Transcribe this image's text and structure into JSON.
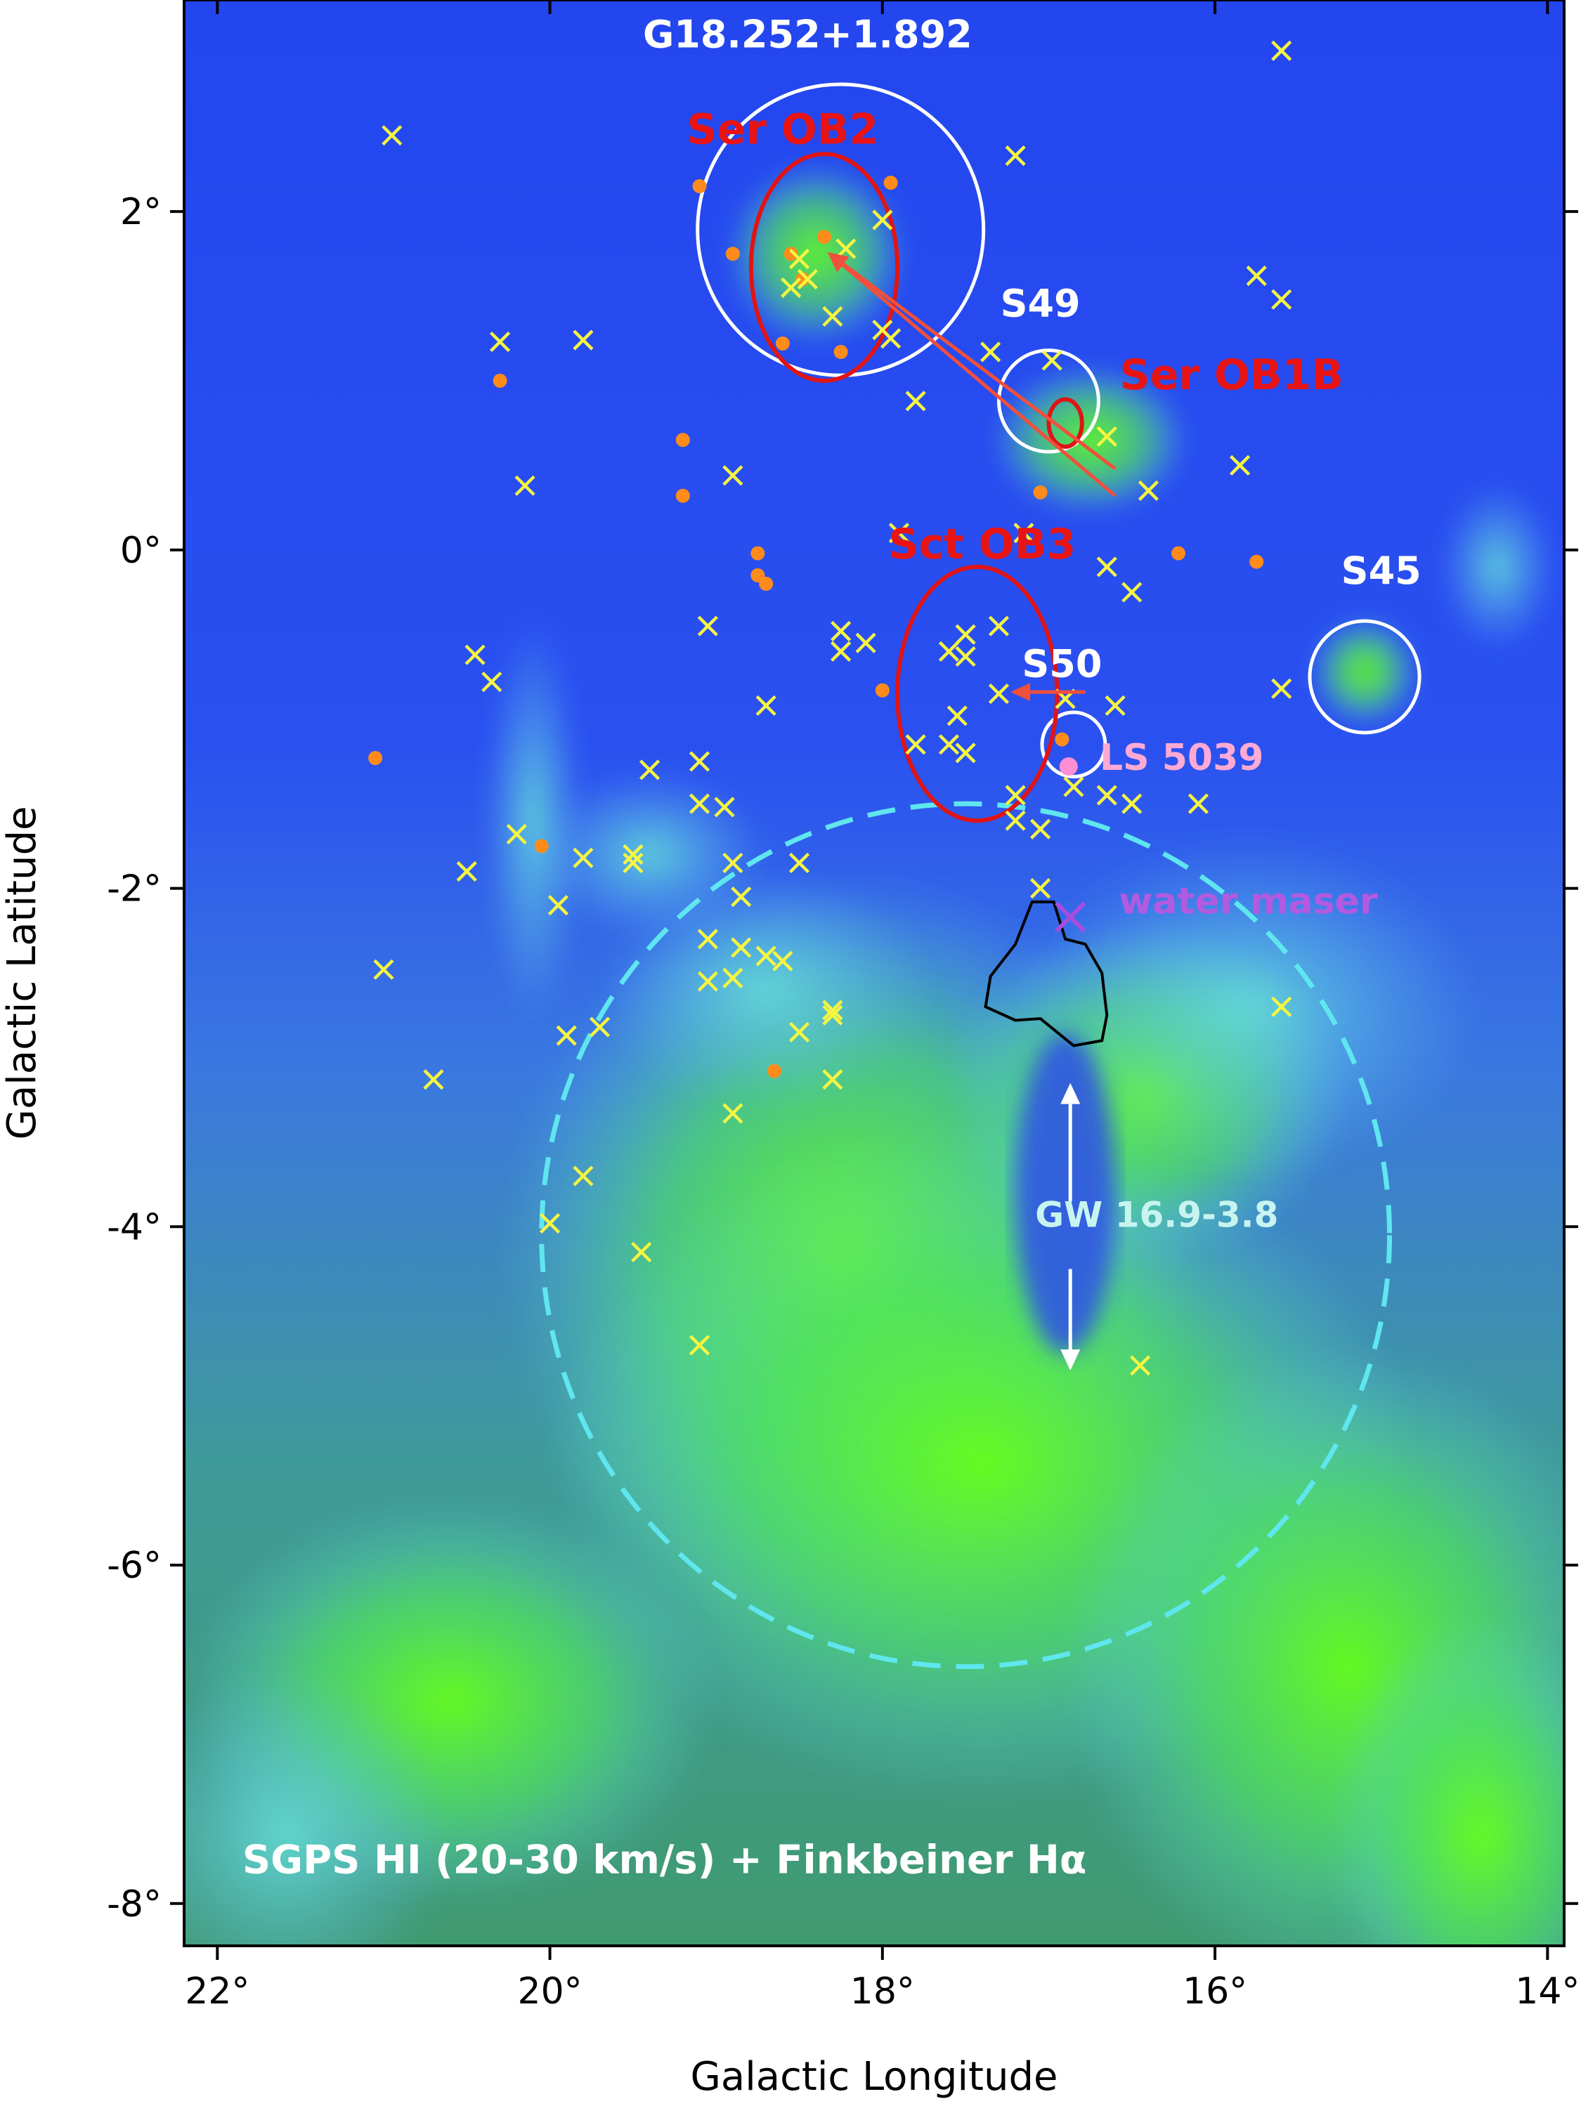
{
  "chart_data": {
    "type": "scatter",
    "xlabel": "Galactic Longitude",
    "ylabel": "Galactic Latitude",
    "xlim": [
      22.2,
      13.9
    ],
    "ylim": [
      -8.25,
      3.25
    ],
    "x_ticks": [
      22,
      20,
      18,
      16,
      14
    ],
    "y_ticks": [
      2,
      0,
      -2,
      -4,
      -6,
      -8
    ],
    "x_tick_labels": [
      "22°",
      "20°",
      "18°",
      "16°",
      "14°"
    ],
    "y_tick_labels": [
      "2°",
      "0°",
      "-2°",
      "-4°",
      "-6°",
      "-8°"
    ],
    "image_note": "SGPS HI (20-30 km/s) + Finkbeiner Hα",
    "background_colors": {
      "blue": "#1f45f0",
      "cyan": "#5fe0e0",
      "green": "#66ff1a"
    },
    "regions": [
      {
        "label": "G18.252+1.892",
        "l": 18.252,
        "b": 1.892,
        "r_l": 0.86,
        "r_b": 0.86,
        "color": "#ffffff",
        "dashed": false,
        "label_l": 18.45,
        "label_b": 2.97
      },
      {
        "label": "S49",
        "l": 17.0,
        "b": 0.88,
        "r_l": 0.3,
        "r_b": 0.3,
        "color": "#ffffff",
        "dashed": false,
        "label_l": 17.05,
        "label_b": 1.38
      },
      {
        "label": "S45",
        "l": 15.1,
        "b": -0.75,
        "r_l": 0.33,
        "r_b": 0.33,
        "color": "#ffffff",
        "dashed": false,
        "label_l": 15.0,
        "label_b": -0.2
      },
      {
        "label": "S50",
        "l": 16.85,
        "b": -1.15,
        "r_l": 0.19,
        "r_b": 0.19,
        "color": "#ffffff",
        "dashed": false,
        "label_l": 16.92,
        "label_b": -0.75
      },
      {
        "label": "GW 16.9-3.8",
        "l": 17.5,
        "b": -4.05,
        "r_l": 2.55,
        "r_b": 2.55,
        "color": "#5fe6ee",
        "dashed": true,
        "label_l": 16.35,
        "label_b": -4.0
      }
    ],
    "ob_associations": [
      {
        "label": "Ser OB2",
        "l": 18.35,
        "b": 1.67,
        "r_l": 0.44,
        "r_b": 0.67,
        "label_l": 18.6,
        "label_b": 2.4
      },
      {
        "label": "Ser OB1B",
        "l": 16.9,
        "b": 0.75,
        "r_l": 0.1,
        "r_b": 0.14,
        "label_l": 15.9,
        "label_b": 0.95
      },
      {
        "label": "Sct OB3",
        "l": 17.43,
        "b": -0.85,
        "r_l": 0.48,
        "r_b": 0.75,
        "label_l": 17.4,
        "label_b": -0.05
      }
    ],
    "point_labels": [
      {
        "label": "LS 5039",
        "l": 16.88,
        "b": -1.28,
        "color": "#ffaad4",
        "label_l": 16.2,
        "label_b": -1.3
      },
      {
        "label": "water maser",
        "l": 16.87,
        "b": -2.17,
        "color": "#b25ae0",
        "label_l": 15.8,
        "label_b": -2.15
      }
    ],
    "motion_arrows": [
      {
        "from": [
          16.6,
          0.48
        ],
        "to": [
          18.33,
          1.76
        ]
      },
      {
        "from": [
          16.6,
          0.32
        ],
        "to": [
          18.33,
          1.76
        ]
      },
      {
        "from": [
          16.78,
          -0.84
        ],
        "to": [
          17.23,
          -0.84
        ]
      }
    ],
    "jet_arrows": [
      {
        "from": [
          16.87,
          -3.85
        ],
        "to": [
          16.87,
          -3.15
        ]
      },
      {
        "from": [
          16.87,
          -4.25
        ],
        "to": [
          16.87,
          -4.85
        ]
      }
    ],
    "contour": {
      "color": "#000000",
      "path": [
        [
          17.1,
          -2.08
        ],
        [
          16.97,
          -2.08
        ],
        [
          16.9,
          -2.3
        ],
        [
          16.78,
          -2.33
        ],
        [
          16.68,
          -2.5
        ],
        [
          16.65,
          -2.75
        ],
        [
          16.68,
          -2.9
        ],
        [
          16.85,
          -2.93
        ],
        [
          16.95,
          -2.85
        ],
        [
          17.05,
          -2.77
        ],
        [
          17.2,
          -2.78
        ],
        [
          17.38,
          -2.7
        ],
        [
          17.35,
          -2.52
        ],
        [
          17.2,
          -2.33
        ]
      ]
    },
    "series": [
      {
        "name": "",
        "marker": "x",
        "color": "#f5f542",
        "points": [
          [
            20.95,
            2.45
          ],
          [
            15.6,
            2.95
          ],
          [
            17.2,
            2.33
          ],
          [
            18.0,
            1.95
          ],
          [
            18.22,
            1.78
          ],
          [
            18.5,
            1.72
          ],
          [
            18.55,
            1.55
          ],
          [
            18.45,
            1.6
          ],
          [
            18.3,
            1.38
          ],
          [
            18.0,
            1.3
          ],
          [
            17.95,
            1.25
          ],
          [
            17.35,
            1.17
          ],
          [
            16.98,
            1.12
          ],
          [
            17.8,
            0.88
          ],
          [
            16.65,
            0.67
          ],
          [
            20.3,
            1.23
          ],
          [
            19.8,
            1.24
          ],
          [
            15.75,
            1.62
          ],
          [
            15.6,
            1.48
          ],
          [
            18.9,
            0.44
          ],
          [
            20.15,
            0.38
          ],
          [
            16.4,
            0.35
          ],
          [
            15.85,
            0.5
          ],
          [
            17.9,
            0.1
          ],
          [
            17.15,
            0.1
          ],
          [
            16.65,
            -0.1
          ],
          [
            16.5,
            -0.25
          ],
          [
            17.3,
            -0.45
          ],
          [
            17.5,
            -0.5
          ],
          [
            18.25,
            -0.48
          ],
          [
            18.25,
            -0.6
          ],
          [
            18.1,
            -0.55
          ],
          [
            17.6,
            -0.6
          ],
          [
            17.5,
            -0.63
          ],
          [
            17.3,
            -0.85
          ],
          [
            19.05,
            -0.45
          ],
          [
            20.45,
            -0.62
          ],
          [
            20.35,
            -0.78
          ],
          [
            18.7,
            -0.92
          ],
          [
            16.9,
            -0.88
          ],
          [
            16.6,
            -0.92
          ],
          [
            15.6,
            -0.82
          ],
          [
            17.55,
            -0.98
          ],
          [
            17.5,
            -1.2
          ],
          [
            17.6,
            -1.15
          ],
          [
            17.8,
            -1.15
          ],
          [
            16.85,
            -1.4
          ],
          [
            16.65,
            -1.45
          ],
          [
            16.5,
            -1.5
          ],
          [
            16.1,
            -1.5
          ],
          [
            17.2,
            -1.45
          ],
          [
            17.2,
            -1.6
          ],
          [
            17.05,
            -1.65
          ],
          [
            19.1,
            -1.25
          ],
          [
            19.4,
            -1.3
          ],
          [
            19.1,
            -1.5
          ],
          [
            18.95,
            -1.52
          ],
          [
            18.5,
            -1.85
          ],
          [
            20.2,
            -1.68
          ],
          [
            19.8,
            -1.82
          ],
          [
            19.5,
            -1.8
          ],
          [
            19.5,
            -1.85
          ],
          [
            20.5,
            -1.9
          ],
          [
            19.95,
            -2.1
          ],
          [
            18.9,
            -1.85
          ],
          [
            18.85,
            -2.05
          ],
          [
            19.05,
            -2.3
          ],
          [
            18.85,
            -2.35
          ],
          [
            18.7,
            -2.4
          ],
          [
            19.05,
            -2.55
          ],
          [
            18.9,
            -2.53
          ],
          [
            18.6,
            -2.43
          ],
          [
            18.3,
            -2.72
          ],
          [
            18.3,
            -2.75
          ],
          [
            18.5,
            -2.85
          ],
          [
            19.9,
            -2.87
          ],
          [
            19.7,
            -2.82
          ],
          [
            18.3,
            -3.13
          ],
          [
            18.9,
            -3.33
          ],
          [
            20.7,
            -3.13
          ],
          [
            21.0,
            -2.48
          ],
          [
            19.8,
            -3.7
          ],
          [
            20.0,
            -3.98
          ],
          [
            19.45,
            -4.15
          ],
          [
            19.1,
            -4.7
          ],
          [
            16.45,
            -4.82
          ],
          [
            15.6,
            -2.7
          ],
          [
            17.05,
            -2.0
          ]
        ]
      },
      {
        "name": "",
        "marker": "o",
        "color": "#ff8c1a",
        "points": [
          [
            19.1,
            2.15
          ],
          [
            17.95,
            2.17
          ],
          [
            18.9,
            1.75
          ],
          [
            18.55,
            1.75
          ],
          [
            18.48,
            1.6
          ],
          [
            18.35,
            1.85
          ],
          [
            18.6,
            1.22
          ],
          [
            18.25,
            1.17
          ],
          [
            20.3,
            1.0
          ],
          [
            19.2,
            0.65
          ],
          [
            19.2,
            0.32
          ],
          [
            17.05,
            0.34
          ],
          [
            18.75,
            -0.02
          ],
          [
            18.75,
            -0.15
          ],
          [
            18.7,
            -0.2
          ],
          [
            18.0,
            -0.83
          ],
          [
            16.22,
            -0.02
          ],
          [
            15.75,
            -0.07
          ],
          [
            21.05,
            -1.23
          ],
          [
            20.05,
            -1.75
          ],
          [
            16.92,
            -1.12
          ],
          [
            18.65,
            -3.08
          ]
        ]
      }
    ],
    "single_markers": [
      {
        "marker": "o",
        "color": "#ff8fd4",
        "l": 16.88,
        "b": -1.28
      },
      {
        "marker": "x",
        "color": "#a64dde",
        "l": 16.87,
        "b": -2.17
      }
    ]
  }
}
